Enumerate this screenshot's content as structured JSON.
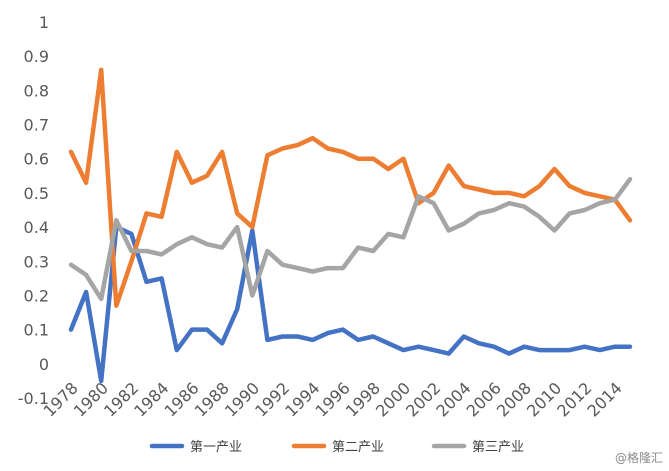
{
  "chart_data": {
    "type": "line",
    "title": "",
    "xlabel": "",
    "ylabel": "",
    "ylim": [
      -0.1,
      1
    ],
    "yticks": [
      "-0.1",
      "0",
      "0.1",
      "0.2",
      "0.3",
      "0.4",
      "0.5",
      "0.6",
      "0.7",
      "0.8",
      "0.9",
      "1"
    ],
    "x": [
      1978,
      1979,
      1980,
      1981,
      1982,
      1983,
      1984,
      1985,
      1986,
      1987,
      1988,
      1989,
      1990,
      1991,
      1992,
      1993,
      1994,
      1995,
      1996,
      1997,
      1998,
      1999,
      2000,
      2001,
      2002,
      2003,
      2004,
      2005,
      2006,
      2007,
      2008,
      2009,
      2010,
      2011,
      2012,
      2013,
      2014,
      2015
    ],
    "xtick_labels": [
      "1978",
      "1980",
      "1982",
      "1984",
      "1986",
      "1988",
      "1990",
      "1992",
      "1994",
      "1996",
      "1998",
      "2000",
      "2002",
      "2004",
      "2006",
      "2008",
      "2010",
      "2012",
      "2014"
    ],
    "grid": false,
    "legend_position": "bottom",
    "series": [
      {
        "name": "第一产业",
        "color": "#4472C4",
        "values": [
          0.1,
          0.21,
          -0.05,
          0.4,
          0.38,
          0.24,
          0.25,
          0.04,
          0.1,
          0.1,
          0.06,
          0.16,
          0.39,
          0.07,
          0.08,
          0.08,
          0.07,
          0.09,
          0.1,
          0.07,
          0.08,
          0.06,
          0.04,
          0.05,
          0.04,
          0.03,
          0.08,
          0.06,
          0.05,
          0.03,
          0.05,
          0.04,
          0.04,
          0.04,
          0.05,
          0.04,
          0.05,
          0.05
        ]
      },
      {
        "name": "第二产业",
        "color": "#ED7D31",
        "values": [
          0.62,
          0.53,
          0.86,
          0.17,
          0.3,
          0.44,
          0.43,
          0.62,
          0.53,
          0.55,
          0.62,
          0.44,
          0.4,
          0.61,
          0.63,
          0.64,
          0.66,
          0.63,
          0.62,
          0.6,
          0.6,
          0.57,
          0.6,
          0.47,
          0.5,
          0.58,
          0.52,
          0.51,
          0.5,
          0.5,
          0.49,
          0.52,
          0.57,
          0.52,
          0.5,
          0.49,
          0.48,
          0.42
        ]
      },
      {
        "name": "第三产业",
        "color": "#A5A5A5",
        "values": [
          0.29,
          0.26,
          0.19,
          0.42,
          0.33,
          0.33,
          0.32,
          0.35,
          0.37,
          0.35,
          0.34,
          0.4,
          0.2,
          0.33,
          0.29,
          0.28,
          0.27,
          0.28,
          0.28,
          0.34,
          0.33,
          0.38,
          0.37,
          0.49,
          0.47,
          0.39,
          0.41,
          0.44,
          0.45,
          0.47,
          0.46,
          0.43,
          0.39,
          0.44,
          0.45,
          0.47,
          0.48,
          0.54
        ]
      }
    ]
  },
  "watermark": "@格隆汇"
}
